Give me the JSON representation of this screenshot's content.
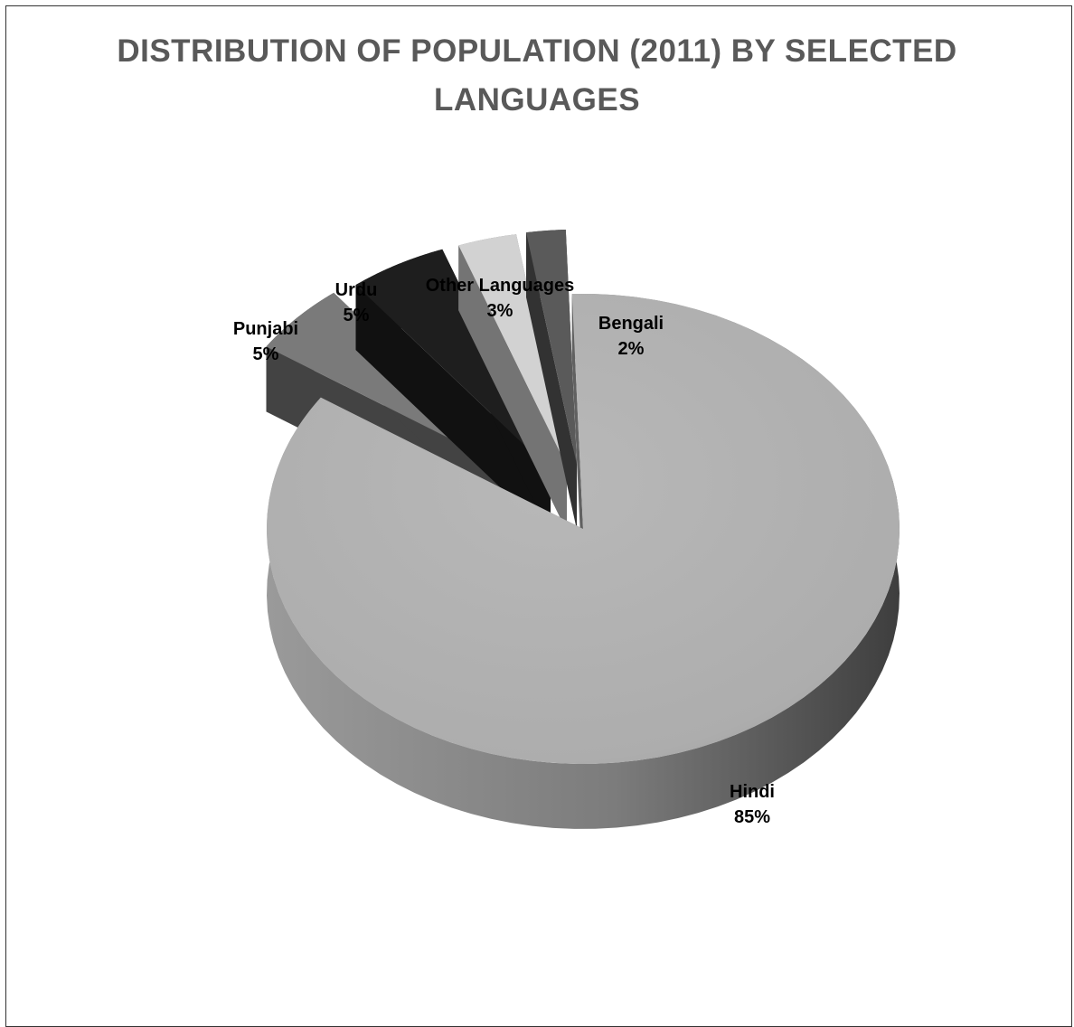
{
  "chart_data": {
    "type": "pie",
    "title": "DISTRIBUTION OF POPULATION (2011) BY SELECTED LANGUAGES",
    "title_lines": [
      "DISTRIBUTION OF POPULATION (2011) BY SELECTED",
      "LANGUAGES"
    ],
    "style": "3d-exploded",
    "slices": [
      {
        "label": "Hindi",
        "value": 85,
        "display": "85%",
        "color": "#b0b0b0"
      },
      {
        "label": "Punjabi",
        "value": 5,
        "display": "5%",
        "color": "#7a7a7a"
      },
      {
        "label": "Urdu",
        "value": 5,
        "display": "5%",
        "color": "#1e1e1e"
      },
      {
        "label": "Other Languages",
        "value": 3,
        "display": "3%",
        "color": "#d2d2d2"
      },
      {
        "label": "Bengali",
        "value": 2,
        "display": "2%",
        "color": "#5a5a5a"
      }
    ],
    "legend": "none",
    "data_labels": "outside"
  }
}
